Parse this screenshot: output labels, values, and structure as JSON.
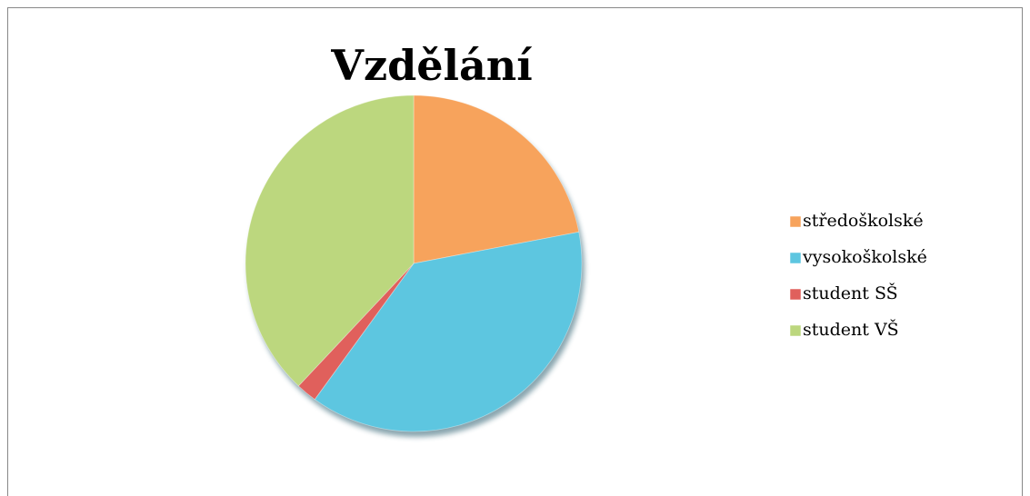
{
  "chart_data": {
    "type": "pie",
    "title": "Vzdělání",
    "categories": [
      "středoškolské",
      "vysokoškolské",
      "student SŠ",
      "student VŠ"
    ],
    "values": [
      22,
      38,
      2,
      38
    ],
    "colors": [
      "#f7a35c",
      "#5dc6e0",
      "#e0605c",
      "#bcd77e"
    ],
    "legend": "right"
  }
}
